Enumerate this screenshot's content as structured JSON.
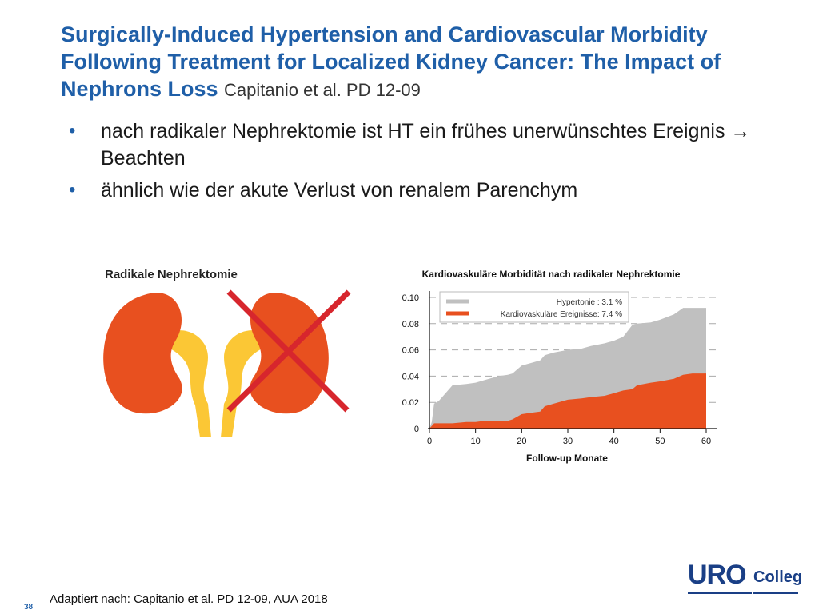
{
  "slide": {
    "title_main": "Surgically-Induced Hypertension and Cardiovascular Morbidity Following Treatment for Localized Kidney Cancer: The Impact of Nephrons Loss",
    "title_cite": "Capitanio et al. PD 12-09",
    "bullets": [
      "nach radikaler Nephrektomie ist HT ein frühes unerwünschtes Ereignis → Beachten",
      "ähnlich wie der akute Verlust von renalem Parenchym"
    ],
    "bullet_symbol": "•",
    "kidney_caption": "Radikale Nephrektomie",
    "source": "Adaptiert nach: Capitanio et al. PD 12-09, AUA 2018",
    "page_number": "38",
    "logo_uro": "URO",
    "logo_colleg": "Colleg"
  },
  "colors": {
    "title_blue": "#1f5fa8",
    "kidney_orange": "#e8501f",
    "ureter_yellow": "#fbc735",
    "cross_red": "#d7262d",
    "hypertension_gray": "#c0c0c0",
    "cv_events_orange": "#e8501f",
    "logo_blue": "#1a3f86"
  },
  "icons": {
    "kidney_graphic": "kidney-pair-with-red-cross-icon"
  },
  "chart_data": {
    "type": "area",
    "title": "Kardiovaskuläre Morbidität nach radikaler Nephrektomie",
    "xlabel": "Follow-up Monate",
    "ylabel": "",
    "xlim": [
      0,
      60
    ],
    "ylim": [
      0,
      0.1
    ],
    "x_ticks": [
      "0",
      "10",
      "20",
      "30",
      "40",
      "50",
      "60"
    ],
    "y_ticks": [
      "0",
      "0.02",
      "0.04",
      "0.06",
      "0.08",
      "0.10"
    ],
    "grid": "horizontal dashed",
    "legend_position": "top",
    "series": [
      {
        "name": "Hypertonie : 3.1 %",
        "color": "#c0c0c0",
        "x": [
          0,
          0.5,
          1,
          2,
          3,
          4,
          5,
          8,
          10,
          12,
          15,
          17,
          18,
          20,
          22,
          24,
          25,
          27,
          30,
          33,
          35,
          38,
          40,
          42,
          44,
          45,
          48,
          50,
          53,
          55,
          57,
          60
        ],
        "y": [
          0,
          0.005,
          0.019,
          0.021,
          0.025,
          0.029,
          0.033,
          0.034,
          0.035,
          0.037,
          0.04,
          0.041,
          0.042,
          0.048,
          0.05,
          0.052,
          0.056,
          0.058,
          0.06,
          0.061,
          0.063,
          0.065,
          0.067,
          0.07,
          0.079,
          0.08,
          0.081,
          0.083,
          0.087,
          0.092,
          0.092,
          0.092
        ]
      },
      {
        "name": "Kardiovaskuläre Ereignisse: 7.4 %",
        "color": "#e8501f",
        "x": [
          0,
          0.5,
          1,
          5,
          8,
          10,
          12,
          15,
          17,
          18,
          20,
          22,
          24,
          25,
          27,
          30,
          33,
          35,
          38,
          40,
          42,
          44,
          45,
          48,
          50,
          53,
          55,
          57,
          60
        ],
        "y": [
          0,
          0.002,
          0.004,
          0.004,
          0.005,
          0.005,
          0.006,
          0.006,
          0.006,
          0.007,
          0.011,
          0.012,
          0.013,
          0.017,
          0.019,
          0.022,
          0.023,
          0.024,
          0.025,
          0.027,
          0.029,
          0.03,
          0.033,
          0.035,
          0.036,
          0.038,
          0.041,
          0.042,
          0.042
        ]
      }
    ]
  }
}
